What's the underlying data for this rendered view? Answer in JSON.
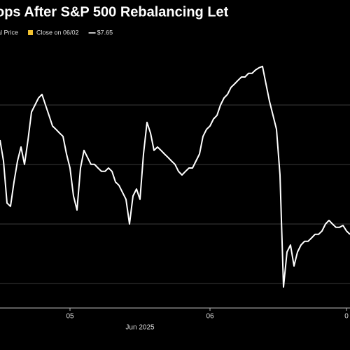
{
  "chart_data": {
    "type": "line",
    "title": "ops After S&P 500 Rebalancing Let",
    "legend": [
      "al Price",
      "Close on 06/02",
      "$7.65"
    ],
    "legend_colors": [
      "#ffffff",
      "#f2c230",
      "#ffffff"
    ],
    "x": [
      0,
      1,
      2,
      3,
      4,
      5,
      6,
      7,
      8,
      9,
      10,
      11,
      12,
      13,
      14,
      15,
      16,
      17,
      18,
      19,
      20,
      21,
      22,
      23,
      24,
      25,
      26,
      27,
      28,
      29,
      30,
      31,
      32,
      33,
      34,
      35,
      36,
      37,
      38,
      39,
      40,
      41,
      42,
      43,
      44,
      45,
      46,
      47,
      48,
      49,
      50,
      51,
      52,
      53,
      54,
      55,
      56,
      57,
      58,
      59,
      60,
      61,
      62,
      63,
      64,
      65,
      66,
      67,
      68,
      69,
      70,
      71,
      72,
      73,
      74,
      75,
      76,
      77,
      78,
      79,
      80,
      81,
      82,
      83,
      84,
      85,
      86,
      87,
      88,
      89,
      90,
      91,
      92,
      93,
      94,
      95,
      96,
      97,
      98,
      99,
      100
    ],
    "series": [
      {
        "name": "al Price",
        "color": "#ffffff",
        "values": [
          60,
          52.5,
          37.5,
          36.3,
          45,
          52.5,
          57.5,
          51.3,
          60,
          70,
          72.5,
          75,
          76.3,
          72.5,
          68.8,
          65,
          63.8,
          62.5,
          61.3,
          55,
          50,
          40,
          35,
          50,
          56.3,
          53.8,
          51.3,
          51.3,
          50,
          48.8,
          48.8,
          50,
          48.8,
          45,
          43.8,
          41.3,
          38.8,
          30,
          40,
          42.5,
          38.8,
          55,
          66.3,
          62.5,
          56.3,
          57.5,
          56.3,
          55,
          53.8,
          52.5,
          51.3,
          48.8,
          47.5,
          48.8,
          50,
          50,
          52.5,
          55,
          61.3,
          63.8,
          65,
          67.5,
          68.8,
          72.5,
          75,
          76.3,
          78.8,
          80,
          81.3,
          82.5,
          82.5,
          83.8,
          83.8,
          85,
          85.8,
          86.3,
          80,
          73.8,
          68.8,
          63.8,
          47.5,
          7.5,
          20,
          22.5,
          15,
          20,
          22.5,
          23.8,
          23.8,
          25,
          26.3,
          26.3,
          27.5,
          30,
          31.3,
          30,
          28.8,
          28.8,
          29.5,
          27.5,
          26.3
        ]
      }
    ],
    "xlim": [
      0,
      100
    ],
    "ylim": [
      0,
      95
    ],
    "xticks": [
      {
        "value": 20,
        "label": "05"
      },
      {
        "value": 60,
        "label": "06"
      },
      {
        "value": 99,
        "label": "0"
      }
    ],
    "x_sublabel": "Jun 2025"
  }
}
